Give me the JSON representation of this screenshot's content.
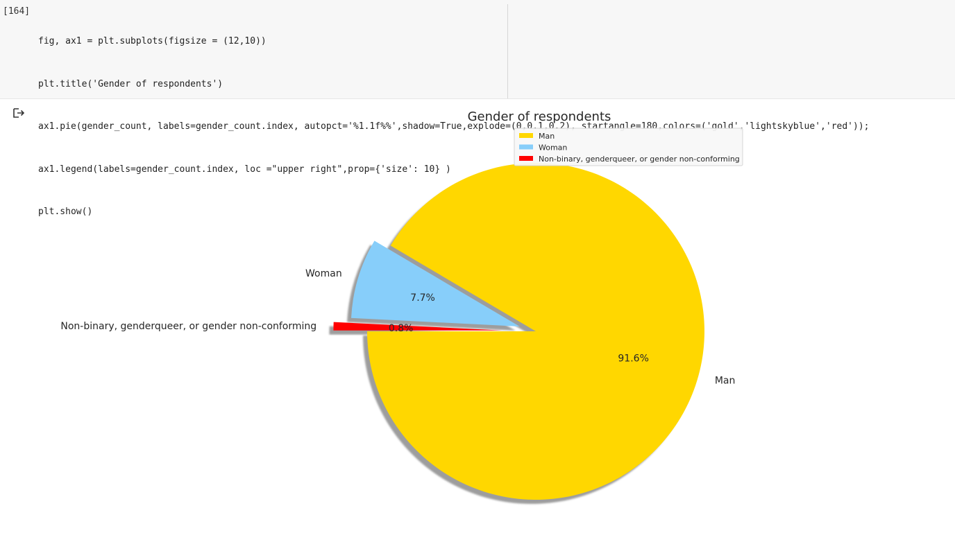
{
  "notebook": {
    "execution_count": "[164]",
    "code_lines": [
      "fig, ax1 = plt.subplots(figsize = (12,10))",
      "plt.title('Gender of respondents')",
      "ax1.pie(gender_count, labels=gender_count.index, autopct='%1.1f%%',shadow=True,explode=(0,0.1,0.2), startangle=180,colors=('gold','lightskyblue','red'));",
      "ax1.legend(labels=gender_count.index, loc =\"upper right\",prop={'size': 10} )",
      "plt.show()"
    ],
    "output_icon": "output-arrow-icon"
  },
  "chart_data": {
    "type": "pie",
    "title": "Gender of respondents",
    "start_angle": 180,
    "shadow": true,
    "legend_placement": "upper-right",
    "slices": [
      {
        "label": "Man",
        "pct_label": "91.6%",
        "value": 91.6,
        "explode": 0,
        "color": "#ffd700"
      },
      {
        "label": "Woman",
        "pct_label": "7.7%",
        "value": 7.7,
        "explode": 0.1,
        "color": "#87cefa"
      },
      {
        "label": "Non-binary, genderqueer, or gender non-conforming",
        "pct_label": "0.8%",
        "value": 0.8,
        "explode": 0.2,
        "color": "#ff0000"
      }
    ]
  }
}
